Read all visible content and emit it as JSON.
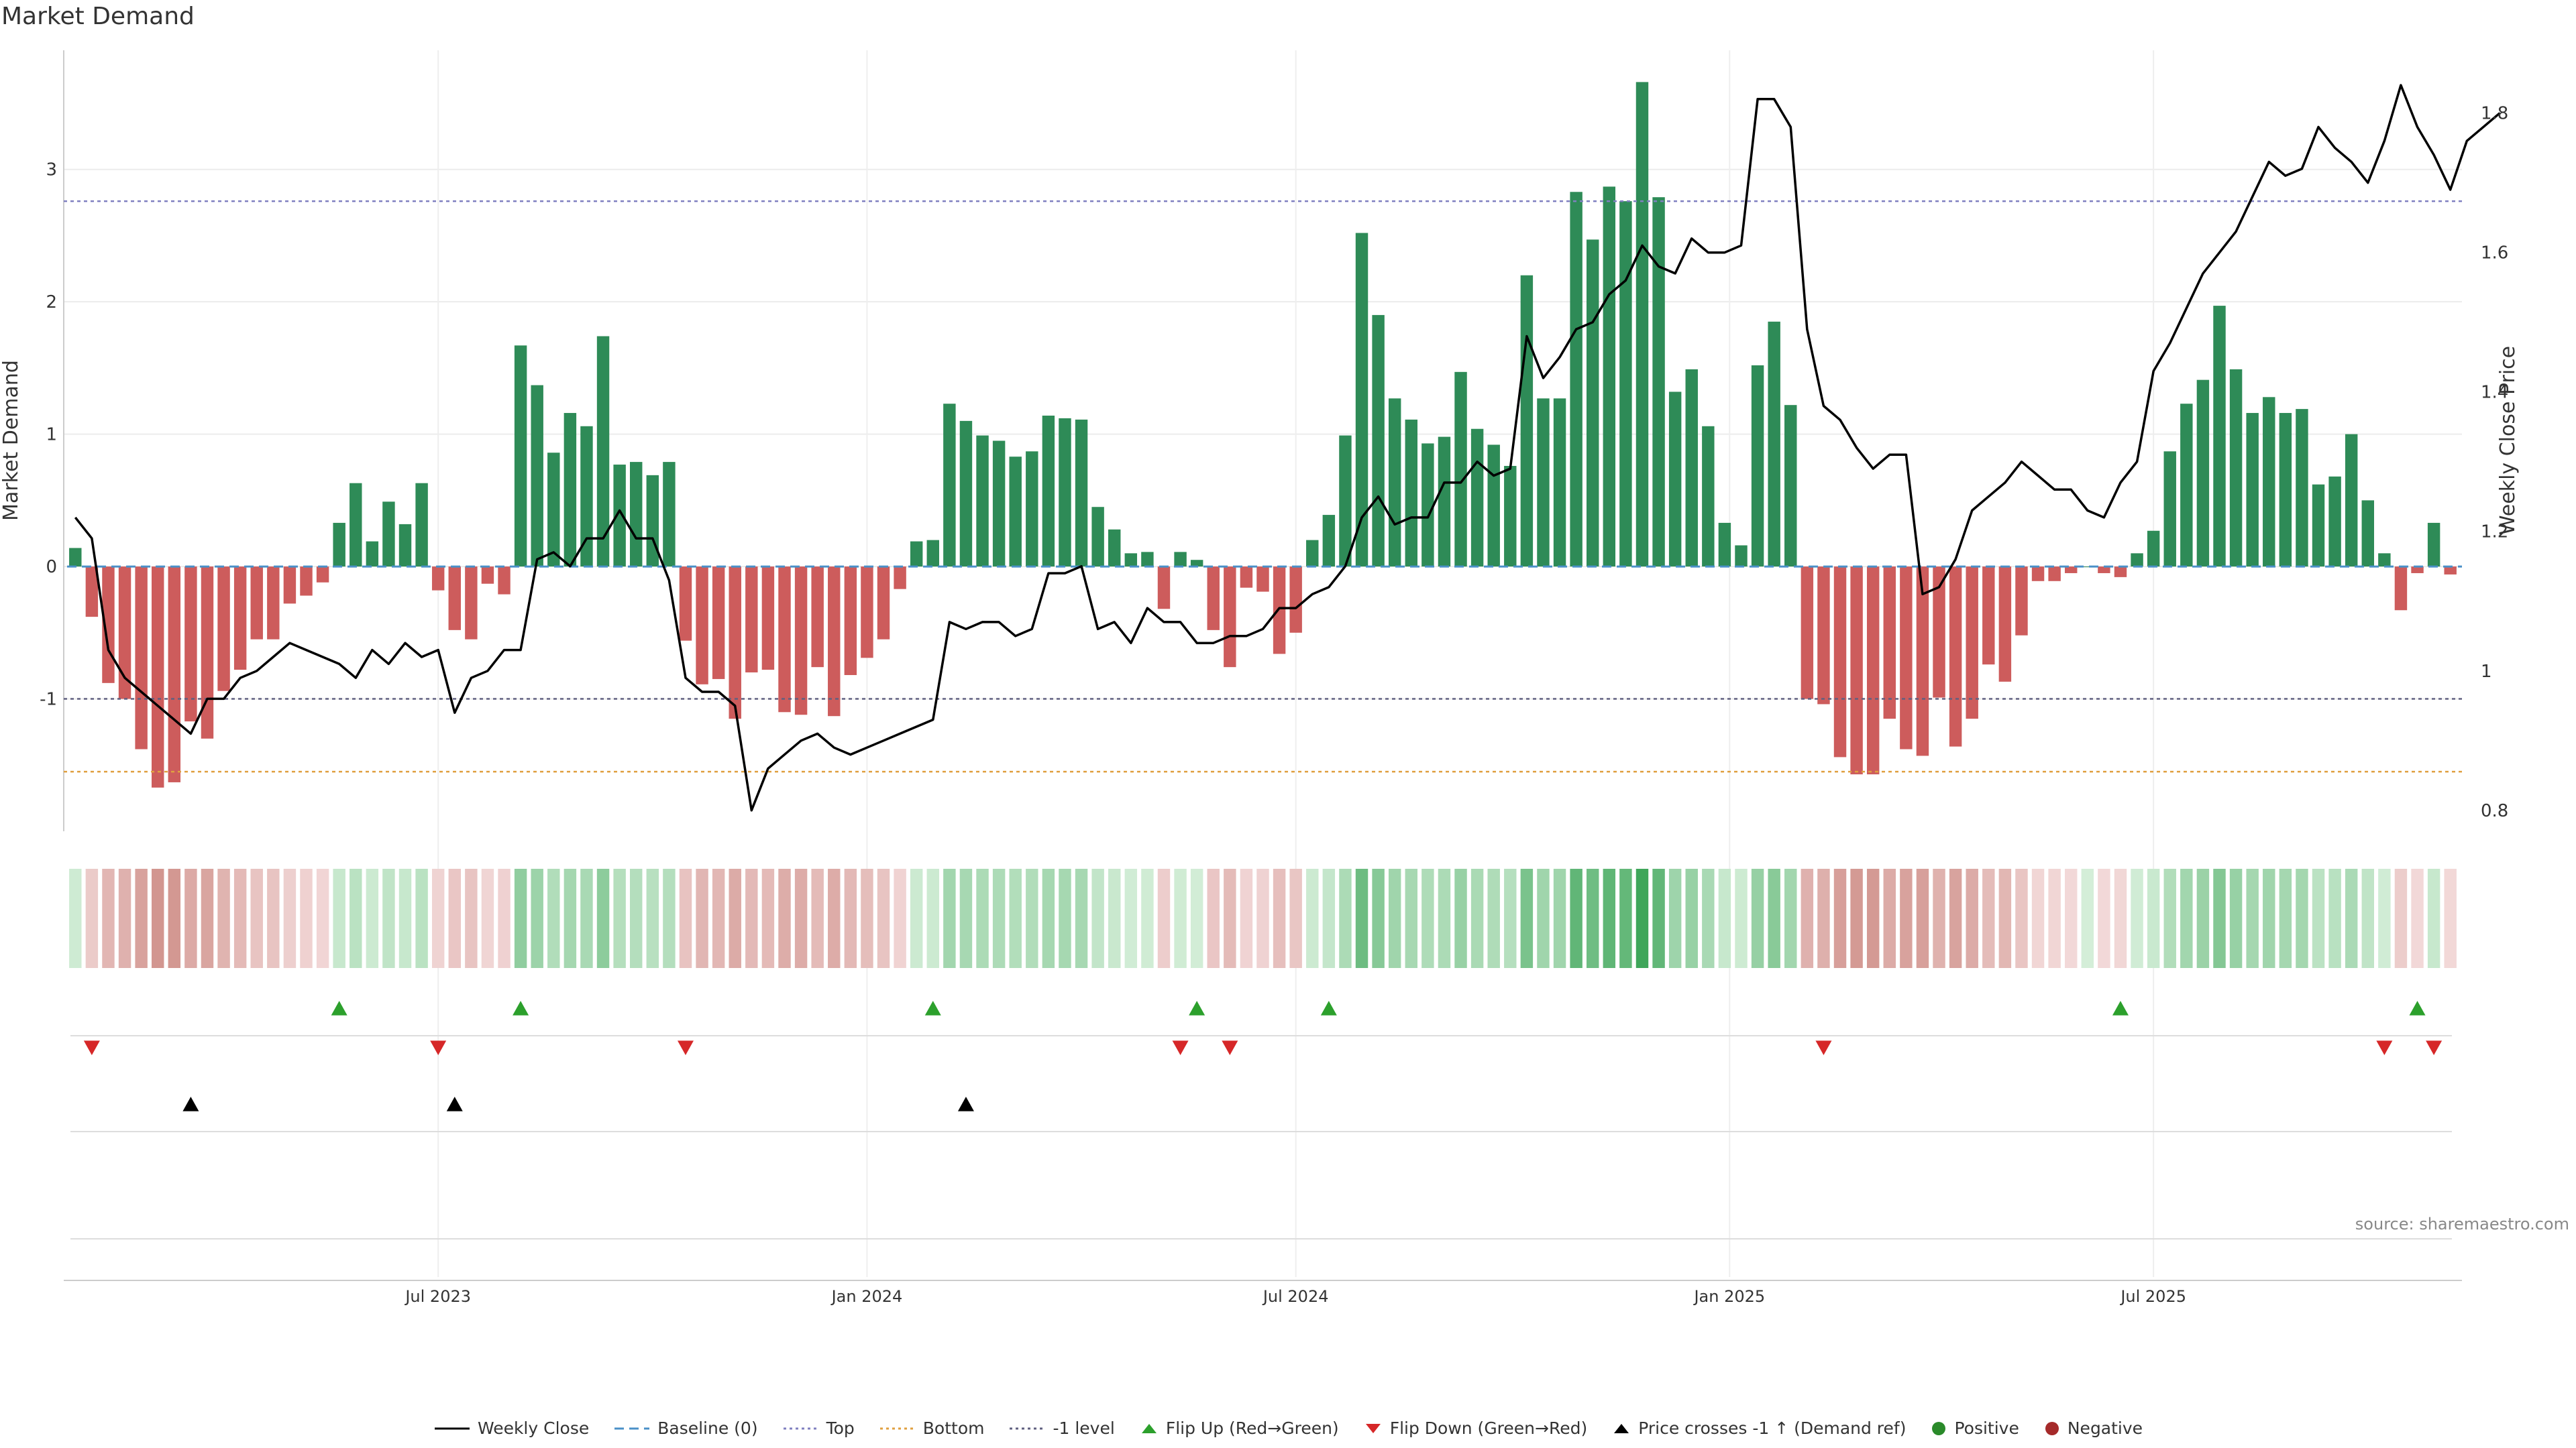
{
  "chart_data": {
    "type": "bar",
    "title": "Market Demand",
    "ylabel": "Market Demand",
    "y2label": "Weekly Close Price",
    "ylim": [
      -2.0,
      3.9
    ],
    "y2lim": [
      0.77,
      1.89
    ],
    "yticks": [
      "-1",
      "0",
      "1",
      "2",
      "3"
    ],
    "y2ticks": [
      "0.8",
      "1",
      "1.2",
      "1.4",
      "1.6",
      "1.8"
    ],
    "xticks": [
      {
        "label": "Jul 2023",
        "index": 22
      },
      {
        "label": "Jan 2024",
        "index": 48
      },
      {
        "label": "Jul 2024",
        "index": 74
      },
      {
        "label": "Jan 2025",
        "index": 100.3
      },
      {
        "label": "Jul 2025",
        "index": 126
      }
    ],
    "reference_lines": {
      "baseline": 0,
      "top": 2.76,
      "bottom": -1.55,
      "minus_one": -1
    },
    "demand": [
      0.14,
      -0.38,
      -0.88,
      -1.0,
      -1.38,
      -1.67,
      -1.63,
      -1.17,
      -1.3,
      -0.94,
      -0.78,
      -0.55,
      -0.55,
      -0.28,
      -0.22,
      -0.12,
      0.33,
      0.63,
      0.19,
      0.49,
      0.32,
      0.63,
      -0.18,
      -0.48,
      -0.55,
      -0.13,
      -0.21,
      1.67,
      1.37,
      0.86,
      1.16,
      1.06,
      1.74,
      0.77,
      0.79,
      0.69,
      0.79,
      -0.56,
      -0.89,
      -0.85,
      -1.15,
      -0.8,
      -0.78,
      -1.1,
      -1.12,
      -0.76,
      -1.13,
      -0.82,
      -0.69,
      -0.55,
      -0.17,
      0.19,
      0.2,
      1.23,
      1.1,
      0.99,
      0.95,
      0.83,
      0.87,
      1.14,
      1.12,
      1.11,
      0.45,
      0.28,
      0.1,
      0.11,
      -0.32,
      0.11,
      0.05,
      -0.48,
      -0.76,
      -0.16,
      -0.19,
      -0.66,
      -0.5,
      0.2,
      0.39,
      0.99,
      2.52,
      1.9,
      1.27,
      1.11,
      0.93,
      0.98,
      1.47,
      1.04,
      0.92,
      0.76,
      2.2,
      1.27,
      1.27,
      2.83,
      2.47,
      2.87,
      2.76,
      3.66,
      2.79,
      1.32,
      1.49,
      1.06,
      0.33,
      0.16,
      1.52,
      1.85,
      1.22,
      -1.0,
      -1.04,
      -1.44,
      -1.57,
      -1.57,
      -1.15,
      -1.38,
      -1.43,
      -0.99,
      -1.36,
      -1.15,
      -0.74,
      -0.87,
      -0.52,
      -0.11,
      -0.11,
      -0.05,
      0,
      -0.05,
      -0.08,
      0.1,
      0.27,
      0.87,
      1.23,
      1.41,
      1.97,
      1.49,
      1.16,
      1.28,
      1.16,
      1.19,
      0.62,
      0.68,
      1.0,
      0.5,
      0.1,
      -0.33,
      -0.05,
      0.33,
      -0.06
    ],
    "weekly_close": [
      1.22,
      1.19,
      1.03,
      0.99,
      0.97,
      0.95,
      0.93,
      0.91,
      0.96,
      0.96,
      0.99,
      1.0,
      1.02,
      1.04,
      1.03,
      1.02,
      1.01,
      0.99,
      1.03,
      1.01,
      1.04,
      1.02,
      1.03,
      0.94,
      0.99,
      1.0,
      1.03,
      1.03,
      1.16,
      1.17,
      1.15,
      1.19,
      1.19,
      1.23,
      1.19,
      1.19,
      1.13,
      0.99,
      0.97,
      0.97,
      0.95,
      0.8,
      0.86,
      0.88,
      0.9,
      0.91,
      0.89,
      0.88,
      0.89,
      0.9,
      0.91,
      0.92,
      0.93,
      1.07,
      1.06,
      1.07,
      1.07,
      1.05,
      1.06,
      1.14,
      1.14,
      1.15,
      1.06,
      1.07,
      1.04,
      1.09,
      1.07,
      1.07,
      1.04,
      1.04,
      1.05,
      1.05,
      1.06,
      1.09,
      1.09,
      1.11,
      1.12,
      1.15,
      1.22,
      1.25,
      1.21,
      1.22,
      1.22,
      1.27,
      1.27,
      1.3,
      1.28,
      1.29,
      1.48,
      1.42,
      1.45,
      1.49,
      1.5,
      1.54,
      1.56,
      1.61,
      1.58,
      1.57,
      1.62,
      1.6,
      1.6,
      1.61,
      1.82,
      1.82,
      1.78,
      1.49,
      1.38,
      1.36,
      1.32,
      1.29,
      1.31,
      1.31,
      1.11,
      1.12,
      1.16,
      1.23,
      1.25,
      1.27,
      1.3,
      1.28,
      1.26,
      1.26,
      1.23,
      1.22,
      1.27,
      1.3,
      1.43,
      1.47,
      1.52,
      1.57,
      1.6,
      1.63,
      1.68,
      1.73,
      1.71,
      1.72,
      1.78,
      1.75,
      1.73,
      1.7,
      1.76,
      1.84,
      1.78,
      1.74,
      1.69,
      1.76,
      1.78,
      1.8
    ],
    "flip_up": [
      16,
      27,
      52,
      68,
      76,
      124,
      142
    ],
    "flip_down": [
      1,
      22,
      37,
      67,
      70,
      106,
      140,
      143
    ],
    "price_cross": [
      7,
      23,
      54
    ],
    "legend": [
      "Weekly Close",
      "Baseline (0)",
      "Top",
      "Bottom",
      "-1 level",
      "Flip Up (Red→Green)",
      "Flip Down (Green→Red)",
      "Price crosses -1 ↑ (Demand ref)",
      "Positive",
      "Negative"
    ]
  },
  "source": "source: sharemaestro.com",
  "colors": {
    "positive": "#2e8b57",
    "negative": "#cd5c5c",
    "flip_up": "#2ca02c",
    "flip_down": "#d62728",
    "cross": "#000000",
    "top_line": "#8080c0",
    "bottom_line": "#e0a040",
    "minus_one_line": "#606080",
    "baseline": "#4a90c8"
  }
}
